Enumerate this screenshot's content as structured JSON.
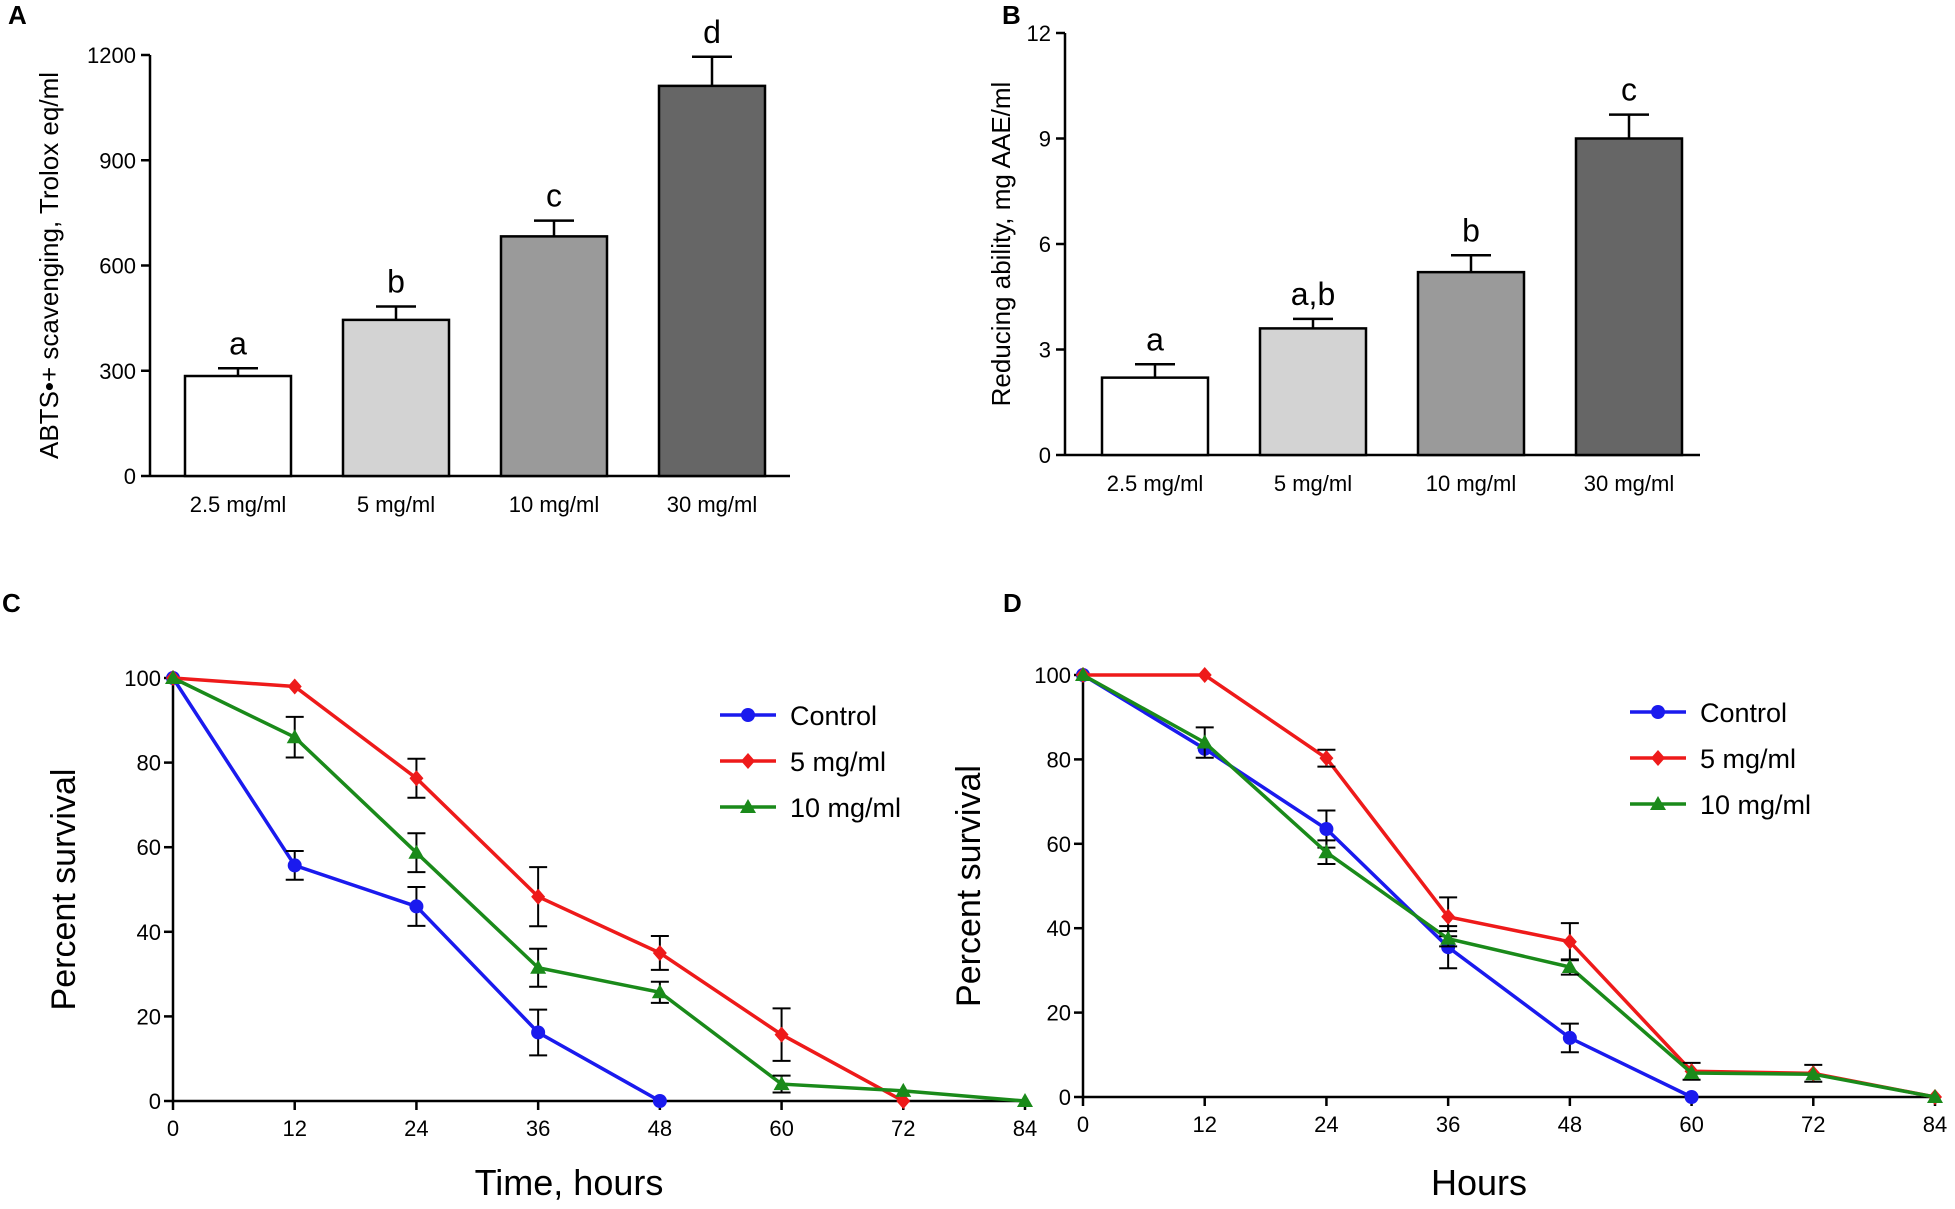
{
  "chart_data": [
    {
      "panel": "A",
      "type": "bar",
      "categories": [
        "2.5 mg/ml",
        "5 mg/ml",
        "10 mg/ml",
        "30 mg/ml"
      ],
      "values": [
        285,
        445,
        683,
        1112
      ],
      "errors": [
        22,
        38,
        45,
        83
      ],
      "bar_colors": [
        "#ffffff",
        "#d3d3d3",
        "#9a9a9a",
        "#666666"
      ],
      "significance": [
        "a",
        "b",
        "c",
        "d"
      ],
      "ylabel": "ABTS•+ scavenging, Trolox eq/ml",
      "ylim": [
        0,
        1200
      ],
      "yticks": [
        "0",
        "300",
        "600",
        "900",
        "1200"
      ]
    },
    {
      "panel": "B",
      "type": "bar",
      "categories": [
        "2.5 mg/ml",
        "5 mg/ml",
        "10 mg/ml",
        "30 mg/ml"
      ],
      "values": [
        2.2,
        3.6,
        5.2,
        9.0
      ],
      "errors": [
        0.38,
        0.27,
        0.48,
        0.68
      ],
      "bar_colors": [
        "#ffffff",
        "#d3d3d3",
        "#9a9a9a",
        "#666666"
      ],
      "significance": [
        "a",
        "a,b",
        "b",
        "c"
      ],
      "ylabel": "Reducing ability, mg AAE/ml",
      "ylim": [
        0,
        12
      ],
      "yticks": [
        "0",
        "3",
        "6",
        "9",
        "12"
      ]
    },
    {
      "panel": "C",
      "type": "line",
      "x_ticks": [
        "0",
        "12",
        "24",
        "36",
        "48",
        "60",
        "72",
        "84"
      ],
      "xlim": [
        0,
        84
      ],
      "ylim": [
        0,
        100
      ],
      "y_ticks": [
        "0",
        "20",
        "40",
        "60",
        "80",
        "100"
      ],
      "xlabel": "Time, hours",
      "ylabel": "Percent survival",
      "series": [
        {
          "name": "Control",
          "color": "#1a1aee",
          "marker": "circle",
          "x": [
            0,
            12,
            24,
            36,
            48
          ],
          "y": [
            100,
            55.7,
            46,
            16.2,
            0
          ],
          "err": [
            0,
            3.4,
            4.6,
            5.4,
            0
          ]
        },
        {
          "name": "5 mg/ml",
          "color": "#ee1a1a",
          "marker": "diamond",
          "x": [
            0,
            12,
            24,
            36,
            48,
            60,
            72
          ],
          "y": [
            100,
            98,
            76.3,
            48.3,
            35,
            15.7,
            0
          ],
          "err": [
            0,
            0,
            4.6,
            7,
            4,
            6.2,
            0
          ]
        },
        {
          "name": "10 mg/ml",
          "color": "#1a8a1a",
          "marker": "triangle",
          "x": [
            0,
            12,
            24,
            36,
            48,
            60,
            72,
            84
          ],
          "y": [
            100,
            86,
            58.7,
            31.5,
            25.7,
            4,
            2.4,
            0
          ],
          "err": [
            0,
            4.8,
            4.6,
            4.5,
            2.5,
            2,
            0,
            0
          ]
        }
      ]
    },
    {
      "panel": "D",
      "type": "line",
      "x_ticks": [
        "0",
        "12",
        "24",
        "36",
        "48",
        "60",
        "72",
        "84"
      ],
      "xlim": [
        0,
        84
      ],
      "ylim": [
        0,
        100
      ],
      "y_ticks": [
        "0",
        "20",
        "40",
        "60",
        "80",
        "100"
      ],
      "xlabel": "Hours",
      "ylabel": "Percent survival",
      "series": [
        {
          "name": "Control",
          "color": "#1a1aee",
          "marker": "circle",
          "x": [
            0,
            12,
            24,
            36,
            48,
            60
          ],
          "y": [
            100,
            82.5,
            63.5,
            35.5,
            14,
            0
          ],
          "err": [
            0,
            0,
            4.4,
            5,
            3.4,
            0
          ]
        },
        {
          "name": "5 mg/ml",
          "color": "#ee1a1a",
          "marker": "diamond",
          "x": [
            0,
            12,
            24,
            36,
            48,
            60,
            72,
            84
          ],
          "y": [
            100,
            100,
            80.3,
            42.7,
            36.8,
            6.1,
            5.6,
            0
          ],
          "err": [
            0,
            0,
            2,
            4.6,
            4.4,
            2,
            2,
            0
          ]
        },
        {
          "name": "10 mg/ml",
          "color": "#1a8a1a",
          "marker": "triangle",
          "x": [
            0,
            12,
            24,
            36,
            48,
            60,
            72,
            84
          ],
          "y": [
            100,
            84,
            58,
            37.5,
            30.8,
            5.7,
            5.4,
            0
          ],
          "err": [
            0,
            3.6,
            2.8,
            1.8,
            1.8,
            0,
            0,
            0
          ]
        }
      ]
    }
  ]
}
